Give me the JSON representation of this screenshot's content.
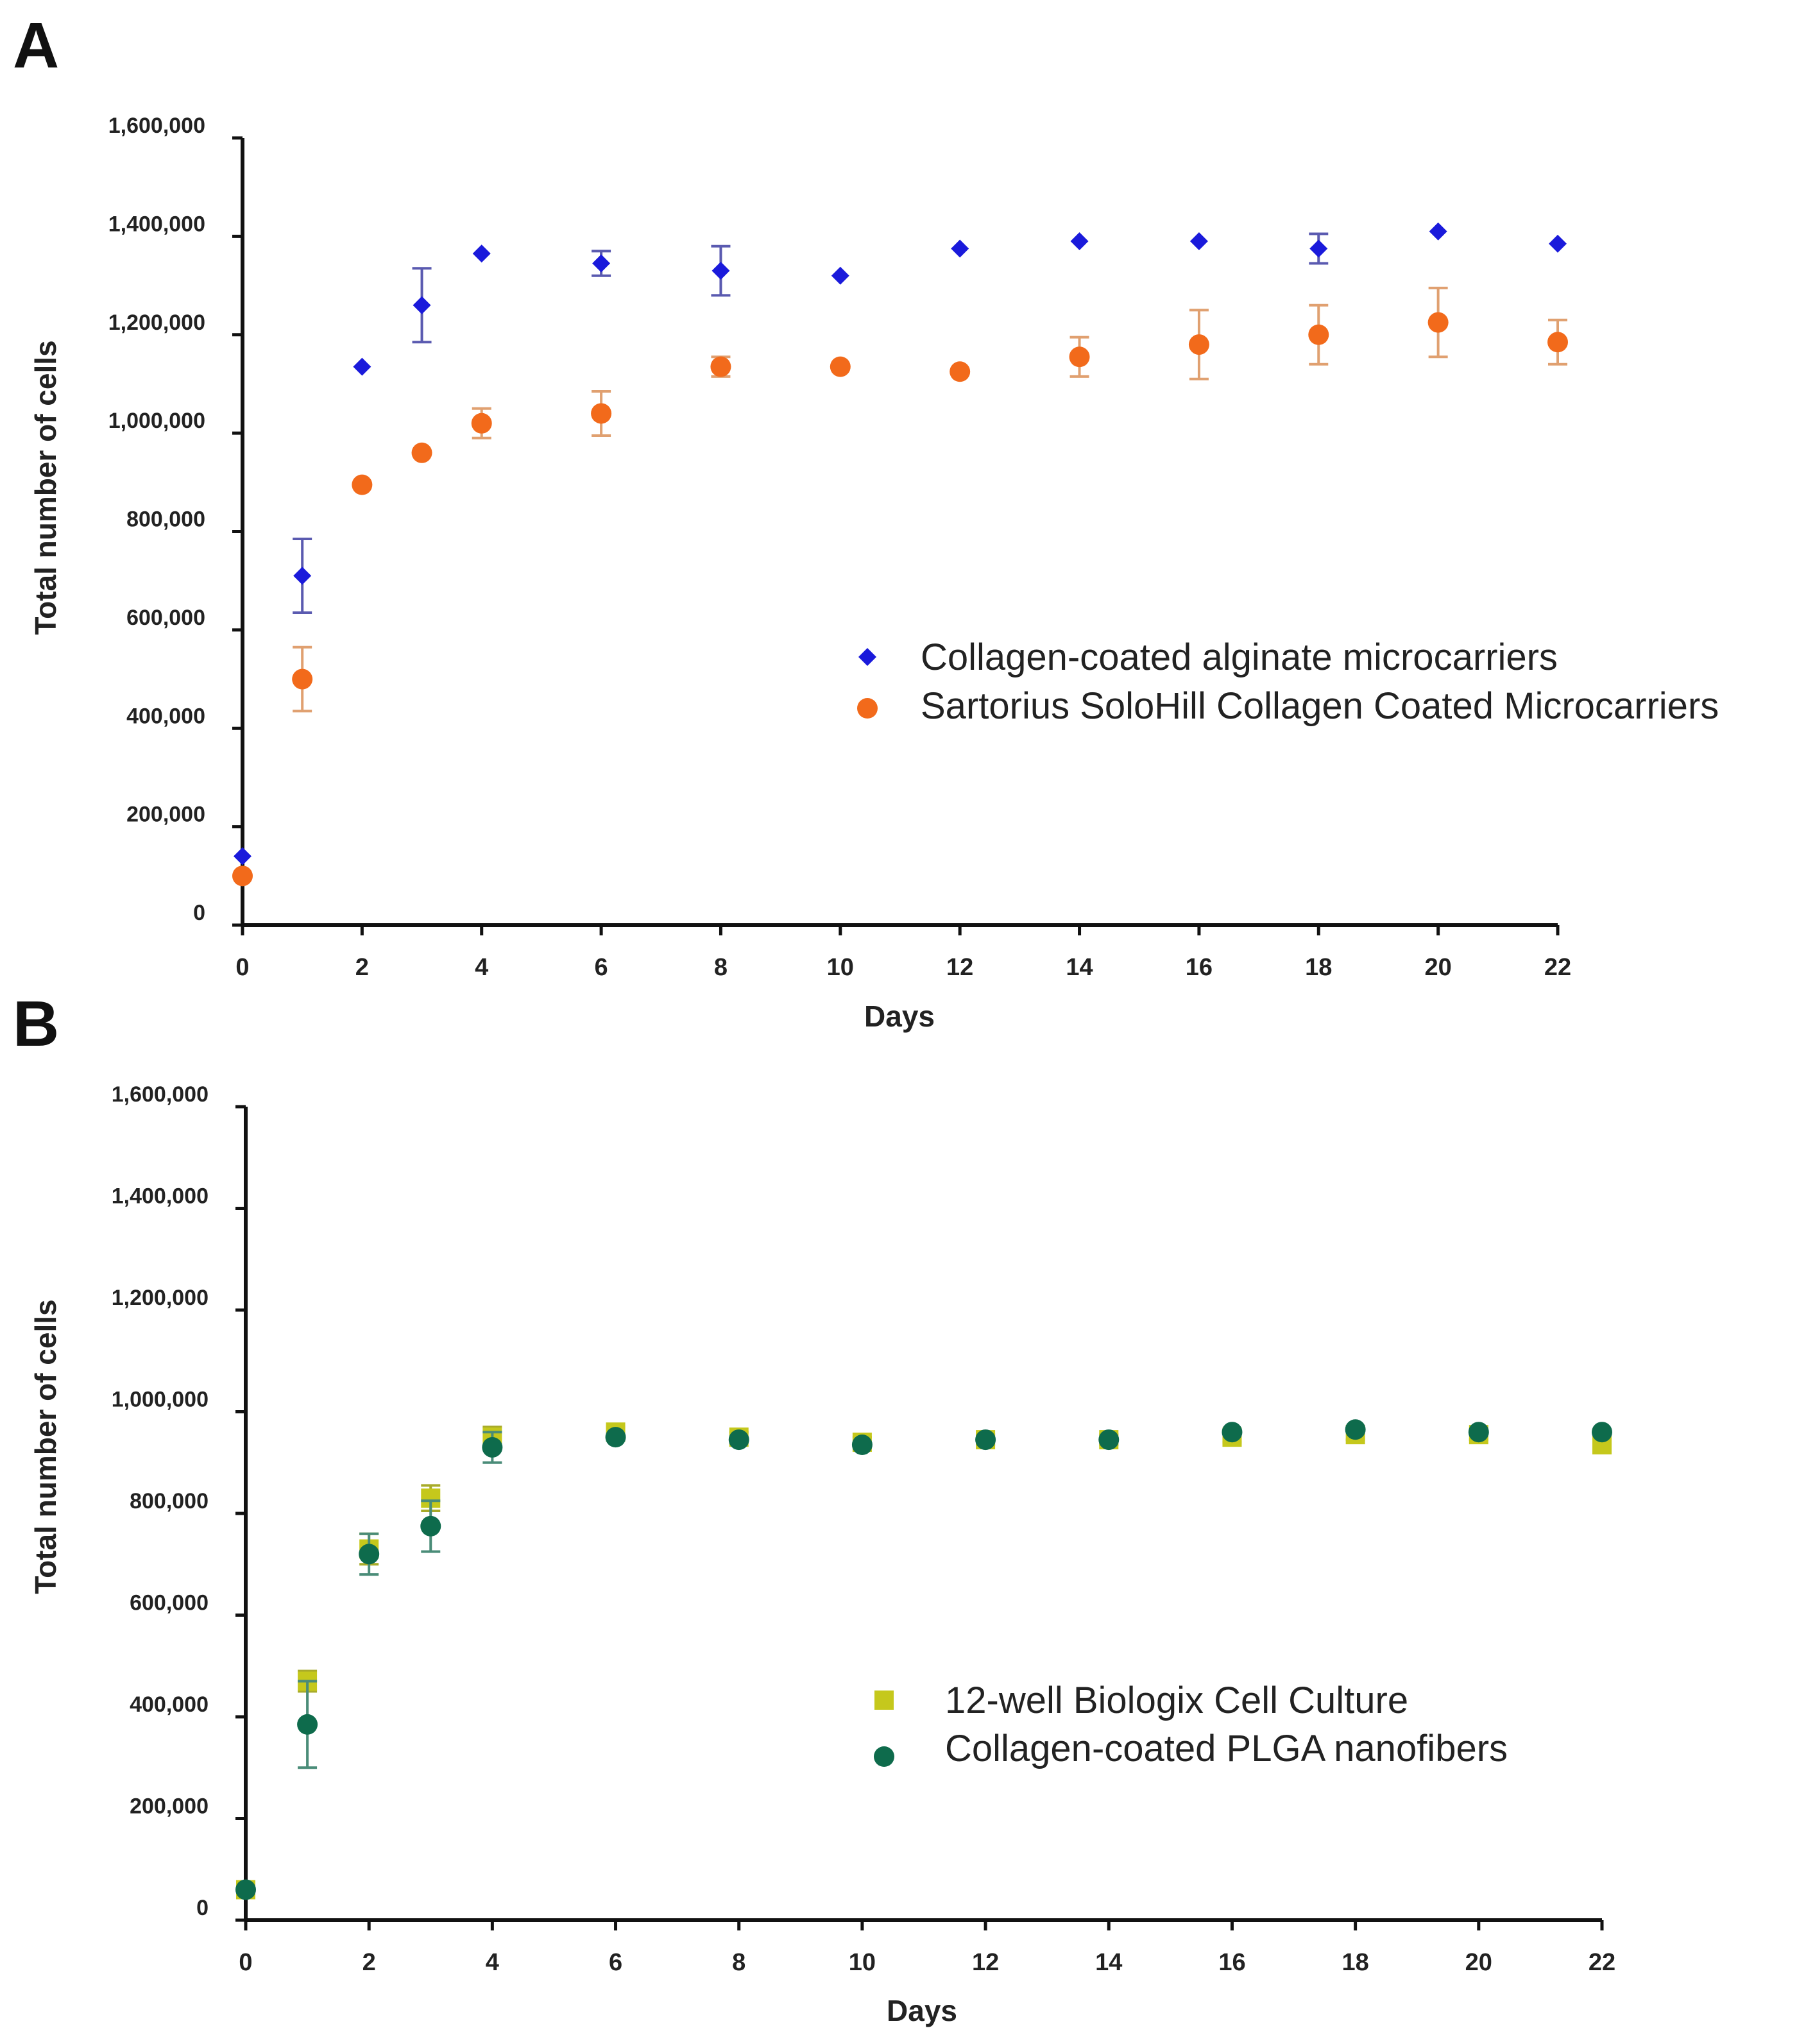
{
  "chart_data": [
    {
      "type": "scatter",
      "panel_label": "A",
      "xlabel": "Days",
      "ylabel": "Total number of cells",
      "xlim": [
        0,
        22
      ],
      "ylim": [
        0,
        1600000
      ],
      "x_ticks": [
        0,
        2,
        4,
        6,
        8,
        10,
        12,
        14,
        16,
        18,
        20,
        22
      ],
      "y_ticks": [
        0,
        200000,
        400000,
        600000,
        800000,
        1000000,
        1200000,
        1400000,
        1600000
      ],
      "y_tick_labels": [
        "0",
        "200,000",
        "400,000",
        "600,000",
        "800,000",
        "1,000,000",
        "1,200,000",
        "1,400,000",
        "1,600,000"
      ],
      "legend_position": "center-right",
      "error_bars": true,
      "series": [
        {
          "name": "Collagen-coated alginate microcarriers",
          "marker": "diamond",
          "color": "#1a1adb",
          "error_color": "#5a5ab0",
          "x": [
            0,
            1,
            2,
            3,
            4,
            6,
            8,
            10,
            12,
            14,
            16,
            18,
            20,
            22
          ],
          "y": [
            140000,
            710000,
            1135000,
            1260000,
            1365000,
            1345000,
            1330000,
            1320000,
            1375000,
            1390000,
            1390000,
            1375000,
            1410000,
            1385000
          ],
          "err": [
            0,
            75000,
            0,
            75000,
            0,
            25000,
            50000,
            0,
            0,
            0,
            0,
            30000,
            0,
            0
          ]
        },
        {
          "name": "Sartorius SoloHill Collagen Coated Microcarriers",
          "marker": "circle",
          "color": "#f26a1b",
          "error_color": "#e0a070",
          "x": [
            0,
            1,
            2,
            3,
            4,
            6,
            8,
            10,
            12,
            14,
            16,
            18,
            20,
            22
          ],
          "y": [
            100000,
            500000,
            895000,
            960000,
            1020000,
            1040000,
            1135000,
            1135000,
            1125000,
            1155000,
            1180000,
            1200000,
            1225000,
            1185000
          ],
          "err": [
            0,
            65000,
            0,
            0,
            30000,
            45000,
            20000,
            0,
            0,
            40000,
            70000,
            60000,
            70000,
            45000
          ]
        }
      ]
    },
    {
      "type": "scatter",
      "panel_label": "B",
      "xlabel": "Days",
      "ylabel": "Total number of cells",
      "xlim": [
        0,
        22
      ],
      "ylim": [
        0,
        1600000
      ],
      "x_ticks": [
        0,
        2,
        4,
        6,
        8,
        10,
        12,
        14,
        16,
        18,
        20,
        22
      ],
      "y_ticks": [
        0,
        200000,
        400000,
        600000,
        800000,
        1000000,
        1200000,
        1400000,
        1600000
      ],
      "y_tick_labels": [
        "0",
        "200,000",
        "400,000",
        "600,000",
        "800,000",
        "1,000,000",
        "1,200,000",
        "1,400,000",
        "1,600,000"
      ],
      "legend_position": "center-right",
      "error_bars": true,
      "series": [
        {
          "name": "12-well Biologix Cell Culture",
          "marker": "square",
          "color": "#c5c81c",
          "error_color": "#a8ab2a",
          "x": [
            0,
            1,
            2,
            3,
            4,
            6,
            8,
            10,
            12,
            14,
            16,
            18,
            20,
            22
          ],
          "y": [
            60000,
            470000,
            730000,
            830000,
            950000,
            960000,
            950000,
            940000,
            945000,
            945000,
            950000,
            955000,
            955000,
            935000
          ],
          "err": [
            0,
            20000,
            30000,
            25000,
            20000,
            10000,
            10000,
            10000,
            10000,
            10000,
            10000,
            10000,
            10000,
            10000
          ]
        },
        {
          "name": "Collagen-coated PLGA nanofibers",
          "marker": "circle",
          "color": "#0e6b4c",
          "error_color": "#4a8c78",
          "x": [
            0,
            1,
            2,
            3,
            4,
            6,
            8,
            10,
            12,
            14,
            16,
            18,
            20,
            22
          ],
          "y": [
            60000,
            385000,
            720000,
            775000,
            930000,
            950000,
            945000,
            935000,
            945000,
            945000,
            960000,
            965000,
            960000,
            960000
          ],
          "err": [
            0,
            85000,
            40000,
            50000,
            30000,
            0,
            0,
            0,
            0,
            0,
            0,
            0,
            0,
            0
          ]
        }
      ]
    }
  ]
}
